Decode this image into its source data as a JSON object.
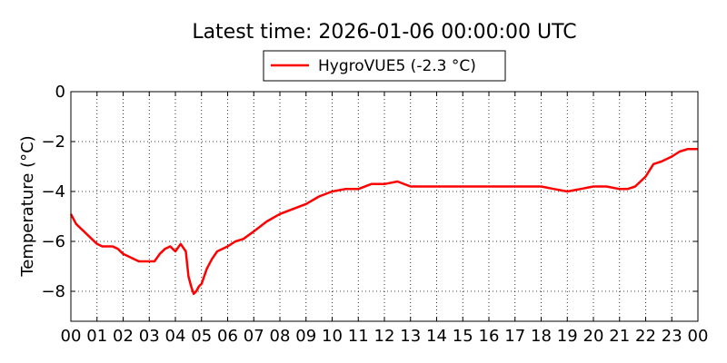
{
  "chart_data": {
    "type": "line",
    "title": "Latest time: 2026-01-06 00:00:00 UTC",
    "xlabel": "",
    "ylabel": "Temperature (°C)",
    "xlim": [
      0,
      24
    ],
    "ylim": [
      -9.2,
      0
    ],
    "x_tick_labels": [
      "00",
      "01",
      "02",
      "03",
      "04",
      "05",
      "06",
      "07",
      "08",
      "09",
      "10",
      "11",
      "12",
      "13",
      "14",
      "15",
      "16",
      "17",
      "18",
      "19",
      "20",
      "21",
      "22",
      "23",
      "00"
    ],
    "y_ticks": [
      0,
      -2,
      -4,
      -6,
      -8
    ],
    "y_tick_labels": [
      "0",
      "−2",
      "−4",
      "−6",
      "−8"
    ],
    "grid": true,
    "legend_position": "top-center",
    "series": [
      {
        "name": "HygroVUE5 (-2.3 °C)",
        "color": "#ff0000",
        "x_hours": [
          0,
          0.2,
          0.4,
          0.6,
          0.8,
          1.0,
          1.2,
          1.4,
          1.6,
          1.8,
          2.0,
          2.2,
          2.4,
          2.6,
          2.8,
          3.0,
          3.2,
          3.4,
          3.6,
          3.8,
          3.9,
          4.0,
          4.2,
          4.4,
          4.5,
          4.6,
          4.7,
          4.8,
          4.9,
          5.0,
          5.2,
          5.4,
          5.6,
          5.8,
          6.0,
          6.3,
          6.6,
          7.0,
          7.5,
          8.0,
          8.5,
          9.0,
          9.5,
          10.0,
          10.5,
          11.0,
          11.5,
          12.0,
          12.5,
          13.0,
          13.5,
          14.0,
          15.0,
          16.0,
          17.0,
          18.0,
          18.5,
          19.0,
          19.5,
          20.0,
          20.5,
          21.0,
          21.3,
          21.6,
          22.0,
          22.3,
          22.6,
          23.0,
          23.3,
          23.6,
          24.0
        ],
        "values": [
          -4.9,
          -5.3,
          -5.5,
          -5.7,
          -5.9,
          -6.1,
          -6.2,
          -6.2,
          -6.2,
          -6.3,
          -6.5,
          -6.6,
          -6.7,
          -6.8,
          -6.8,
          -6.8,
          -6.8,
          -6.5,
          -6.3,
          -6.2,
          -6.3,
          -6.4,
          -6.1,
          -6.4,
          -7.4,
          -7.8,
          -8.1,
          -8.0,
          -7.8,
          -7.7,
          -7.1,
          -6.7,
          -6.4,
          -6.3,
          -6.2,
          -6.0,
          -5.9,
          -5.6,
          -5.2,
          -4.9,
          -4.7,
          -4.5,
          -4.2,
          -4.0,
          -3.9,
          -3.9,
          -3.7,
          -3.7,
          -3.6,
          -3.8,
          -3.8,
          -3.8,
          -3.8,
          -3.8,
          -3.8,
          -3.8,
          -3.9,
          -4.0,
          -3.9,
          -3.8,
          -3.8,
          -3.9,
          -3.9,
          -3.8,
          -3.4,
          -2.9,
          -2.8,
          -2.6,
          -2.4,
          -2.3,
          -2.3
        ]
      }
    ]
  }
}
